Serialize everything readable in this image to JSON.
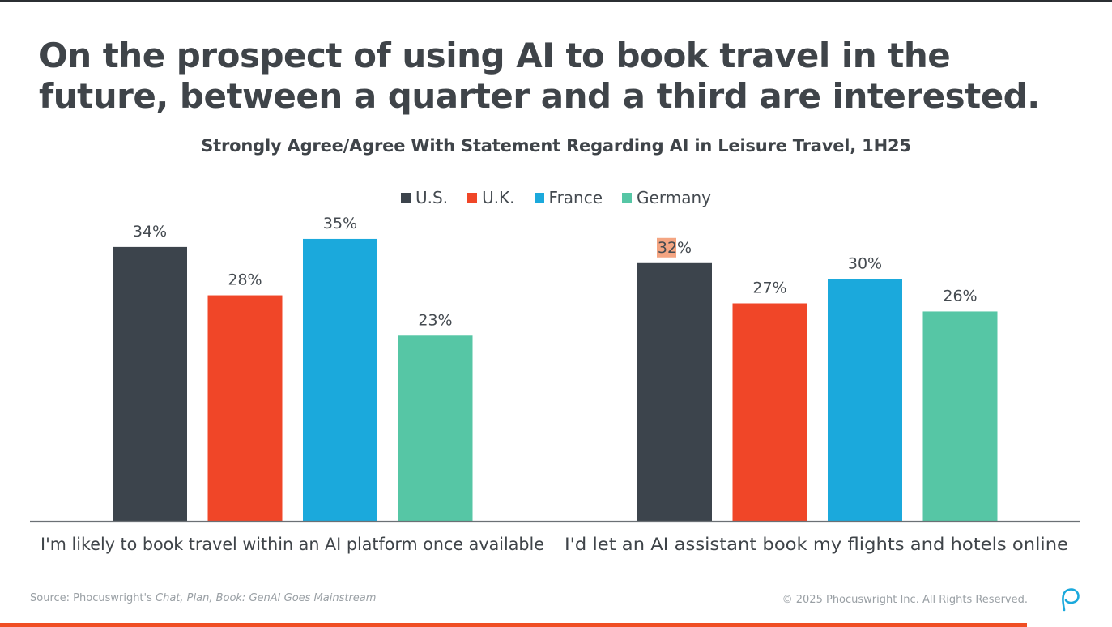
{
  "headline": "On the prospect of using AI to book travel in the future, between a quarter and a third are interested.",
  "chart_data": {
    "type": "bar",
    "title": "Strongly Agree/Agree With Statement Regarding AI in Leisure Travel, 1H25",
    "categories": [
      "I'm likely to book travel within an AI platform once available",
      "I'd let an AI assistant book my flights and hotels online"
    ],
    "series": [
      {
        "name": "U.S.",
        "color": "#3c444c",
        "values": [
          34,
          32
        ]
      },
      {
        "name": "U.K.",
        "color": "#f04628",
        "values": [
          28,
          27
        ]
      },
      {
        "name": "France",
        "color": "#1ba9dc",
        "values": [
          35,
          30
        ]
      },
      {
        "name": "Germany",
        "color": "#56c6a5",
        "values": [
          23,
          26
        ]
      }
    ],
    "value_suffix": "%",
    "ylim": [
      0,
      36
    ],
    "grid": false,
    "legend_position": "top-center",
    "highlighted_label": {
      "series": 0,
      "category": 1,
      "color": "#f4a582"
    }
  },
  "footer": {
    "source_prefix": "Source: Phocuswright's ",
    "source_title": "Chat, Plan, Book: GenAI Goes Mainstream",
    "copyright": "© 2025 Phocuswright Inc. All Rights Reserved."
  },
  "logo_icon": "phocuswright-logo-icon"
}
